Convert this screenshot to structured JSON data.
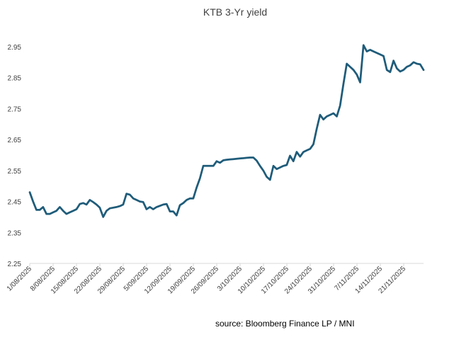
{
  "chart_data": {
    "type": "line",
    "title": "KTB 3-Yr yield",
    "xlabel": "",
    "ylabel": "",
    "ylim": [
      2.25,
      2.95
    ],
    "yticks": [
      "2.25",
      "2.35",
      "2.45",
      "2.55",
      "2.65",
      "2.75",
      "2.85",
      "2.95"
    ],
    "xticks": [
      "1/08/2025",
      "8/08/2025",
      "15/08/2025",
      "22/08/2025",
      "29/08/2025",
      "5/09/2025",
      "12/09/2025",
      "19/09/2025",
      "26/09/2025",
      "3/10/2025",
      "10/10/2025",
      "17/10/2025",
      "24/10/2025",
      "31/10/2025",
      "7/11/2025",
      "14/11/2025",
      "21/11/2025"
    ],
    "x_range": [
      0,
      118
    ],
    "source": "source:  Bloomberg Finance LP / MNI",
    "colors": {
      "line": "#1f5c7a",
      "axis": "#d9d9d9",
      "text": "#404040"
    },
    "series": [
      {
        "name": "KTB 3-Yr yield",
        "x": [
          0,
          1,
          2,
          3,
          4,
          5,
          6,
          7,
          8,
          9,
          10,
          11,
          12,
          13,
          14,
          15,
          16,
          17,
          18,
          19,
          20,
          21,
          22,
          23,
          24,
          25,
          26,
          27,
          28,
          29,
          30,
          31,
          32,
          33,
          34,
          35,
          36,
          37,
          38,
          39,
          40,
          41,
          42,
          43,
          44,
          45,
          46,
          47,
          48,
          49,
          50,
          51,
          52,
          53,
          54,
          55,
          56,
          57,
          58,
          59,
          60,
          61,
          62,
          63,
          64,
          65,
          66,
          67,
          68,
          69,
          70,
          71,
          72,
          73,
          74,
          75,
          76,
          77,
          78,
          79,
          80,
          81,
          82,
          83,
          84,
          85,
          86,
          87,
          88,
          89,
          90,
          91,
          92,
          93,
          94,
          95,
          96,
          97,
          98,
          99,
          100,
          101,
          102,
          103,
          104,
          105,
          106,
          107,
          108,
          109,
          110,
          111,
          112,
          113,
          114,
          115,
          116,
          117,
          118
        ],
        "values": [
          2.48,
          2.45,
          2.423,
          2.423,
          2.432,
          2.41,
          2.41,
          2.415,
          2.42,
          2.432,
          2.42,
          2.41,
          2.415,
          2.42,
          2.425,
          2.442,
          2.445,
          2.44,
          2.455,
          2.448,
          2.44,
          2.43,
          2.4,
          2.42,
          2.428,
          2.43,
          2.432,
          2.435,
          2.44,
          2.475,
          2.472,
          2.46,
          2.455,
          2.45,
          2.448,
          2.425,
          2.432,
          2.425,
          2.432,
          2.436,
          2.44,
          2.442,
          2.418,
          2.418,
          2.405,
          2.438,
          2.445,
          2.455,
          2.46,
          2.46,
          2.495,
          2.525,
          2.565,
          2.565,
          2.565,
          2.565,
          2.58,
          2.575,
          2.583,
          2.585,
          2.586,
          2.587,
          2.588,
          2.589,
          2.59,
          2.591,
          2.592,
          2.592,
          2.582,
          2.565,
          2.55,
          2.53,
          2.52,
          2.565,
          2.555,
          2.56,
          2.565,
          2.568,
          2.598,
          2.58,
          2.61,
          2.595,
          2.61,
          2.615,
          2.62,
          2.635,
          2.685,
          2.73,
          2.715,
          2.725,
          2.73,
          2.735,
          2.725,
          2.76,
          2.83,
          2.895,
          2.885,
          2.875,
          2.86,
          2.835,
          2.955,
          2.935,
          2.94,
          2.935,
          2.93,
          2.925,
          2.92,
          2.875,
          2.868,
          2.905,
          2.88,
          2.87,
          2.875,
          2.885,
          2.89,
          2.9,
          2.895,
          2.893,
          2.875
        ]
      }
    ]
  }
}
